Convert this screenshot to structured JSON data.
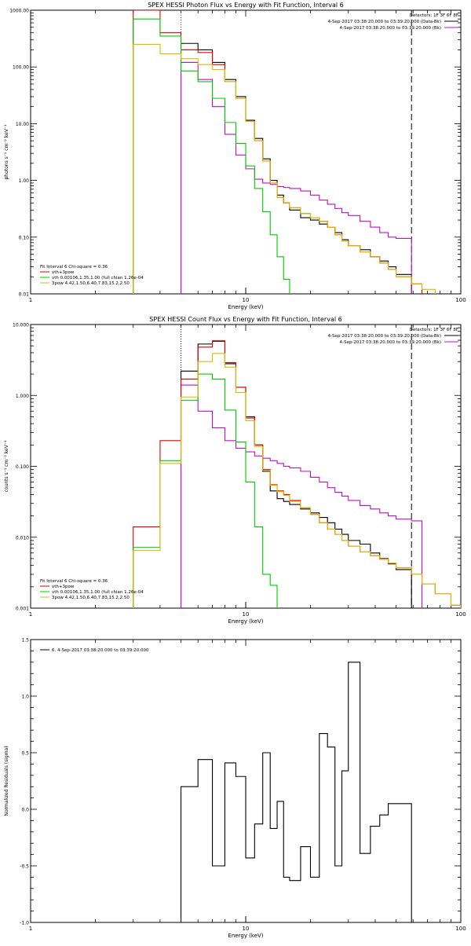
{
  "chart_data": [
    {
      "type": "line",
      "title": "SPEX HESSI Photon Flux vs Energy with Fit Function, Interval 6",
      "xlabel": "Energy (keV)",
      "ylabel": "photons s⁻¹ cm⁻² keV⁻¹",
      "x_scale": "log",
      "y_scale": "log",
      "xlim": [
        1,
        100
      ],
      "ylim": [
        0.01,
        1000
      ],
      "x_ticks": [
        1,
        10,
        100
      ],
      "x_tick_labels": [
        "1",
        "10",
        "100"
      ],
      "y_ticks": [
        0.01,
        0.1,
        1,
        10,
        100,
        1000
      ],
      "y_tick_labels": [
        "0.01",
        "0.10",
        "1.00",
        "10.00",
        "100.00",
        "1000.00"
      ],
      "header_lines": [
        "Detectors: 1F 3F 6F 8F",
        "4-Sep-2017 03:38:20.000 to 03:39:20.000 (Data-Bk)",
        "4-Sep-2017 03:38:20.000 to 03:39:20.000 (Bk)"
      ],
      "header_colors": [
        "#000000",
        "#c010c0"
      ],
      "legend_lines": [
        "Fit Interval 6   Chi-square = 0.36",
        "vth+3pow",
        "vth 0.00106,1.35,1.00  (full chian 1.26e-04",
        "3pow 4.42,1.50,6.40,7.83,15.2,2.50"
      ],
      "legend_colors": [
        "#000000",
        "#e00000",
        "#00cc00",
        "#ddbb00"
      ],
      "vlines": [
        {
          "x": 5.0,
          "style": "dotted",
          "color": "#c010c0"
        },
        {
          "x": 59,
          "style": "dashed",
          "color": "#000000"
        }
      ],
      "edges": [
        3.0,
        4.0,
        5.0,
        5.5,
        6.0,
        6.5,
        7.0,
        7.5,
        8.0,
        8.5,
        9.0,
        9.5,
        10.0,
        11.0,
        12.0,
        13.0,
        14.0,
        15.0,
        16.0,
        18.0,
        20.0,
        22.0,
        24.0,
        26.0,
        28.0,
        30.0,
        34.0,
        38.0,
        42.0,
        46.0,
        50.0,
        59.0,
        66.0,
        76.0
      ],
      "series": [
        {
          "name": "Data-Bk",
          "color": "#000000",
          "values": [
            null,
            null,
            260,
            260,
            200,
            200,
            120,
            120,
            60,
            60,
            30,
            30,
            11.5,
            5.5,
            2.4,
            1.0,
            0.55,
            0.4,
            0.3,
            0.22,
            0.2,
            0.17,
            0.15,
            0.12,
            0.09,
            0.07,
            0.06,
            0.045,
            0.038,
            0.03,
            0.022,
            null,
            null
          ]
        },
        {
          "name": "Bk",
          "color": "#c010c0",
          "values": [
            null,
            null,
            120,
            120,
            60,
            60,
            20,
            20,
            6.5,
            6.5,
            2.8,
            2.8,
            1.6,
            1.05,
            0.9,
            0.85,
            0.78,
            0.75,
            0.72,
            0.65,
            0.55,
            0.45,
            0.38,
            0.32,
            0.27,
            0.24,
            0.19,
            0.15,
            0.12,
            0.1,
            0.095,
            null,
            null
          ]
        },
        {
          "name": "vth+3pow",
          "color": "#e00000",
          "values": [
            1000,
            400,
            200,
            200,
            180,
            180,
            110,
            110,
            55,
            55,
            28,
            28,
            11.0,
            5.0,
            2.2,
            0.9,
            0.5,
            0.4,
            0.33,
            0.26,
            0.22,
            0.19,
            0.15,
            0.11,
            0.085,
            0.07,
            0.055,
            0.045,
            0.035,
            0.027,
            0.02,
            0.015,
            null
          ]
        },
        {
          "name": "vth",
          "color": "#00cc00",
          "values": [
            700,
            350,
            85,
            85,
            55,
            55,
            28,
            28,
            10.5,
            10.5,
            4.5,
            4.5,
            1.8,
            0.72,
            0.28,
            0.11,
            0.045,
            0.018,
            null,
            null,
            null,
            null,
            null,
            null,
            null,
            null,
            null,
            null,
            null,
            null,
            null,
            null,
            null
          ]
        },
        {
          "name": "3pow",
          "color": "#ddbb00",
          "values": [
            250,
            170,
            140,
            140,
            110,
            110,
            90,
            90,
            55,
            55,
            28,
            28,
            11.0,
            5.0,
            2.2,
            0.9,
            0.5,
            0.4,
            0.33,
            0.26,
            0.22,
            0.19,
            0.15,
            0.11,
            0.085,
            0.07,
            0.055,
            0.045,
            0.035,
            0.027,
            0.02,
            0.015,
            0.012
          ]
        }
      ]
    },
    {
      "type": "line",
      "title": "SPEX HESSI Count Flux vs Energy with Fit Function, Interval 6",
      "xlabel": "Energy (keV)",
      "ylabel": "counts s⁻¹ cm⁻² keV⁻¹",
      "x_scale": "log",
      "y_scale": "log",
      "xlim": [
        1,
        100
      ],
      "ylim": [
        0.001,
        10
      ],
      "x_ticks": [
        1,
        10,
        100
      ],
      "x_tick_labels": [
        "1",
        "10",
        "100"
      ],
      "y_ticks": [
        0.001,
        0.01,
        0.1,
        1,
        10
      ],
      "y_tick_labels": [
        "0.001",
        "0.010",
        "0.100",
        "1.000",
        "10.000"
      ],
      "header_lines": [
        "Detectors: 1F 3F 6F 8F",
        "4-Sep-2017 03:38:20.000 to 03:39:20.000 (Data-Bk)",
        "4-Sep-2017 03:38:20.000 to 03:39:20.000 (Bk)"
      ],
      "header_colors": [
        "#000000",
        "#c010c0"
      ],
      "legend_lines": [
        "Fit Interval 6   Chi-square = 0.36",
        "vth+3pow",
        "vth 0.00106,1.35,1.00  (full chian 1.26e-04",
        "3pow 4.42,1.50,6.40,7.83,15.2,2.50"
      ],
      "legend_colors": [
        "#000000",
        "#e00000",
        "#00cc00",
        "#ddbb00"
      ],
      "vlines": [
        {
          "x": 5.0,
          "style": "dotted",
          "color": "#000000"
        },
        {
          "x": 59,
          "style": "dashed",
          "color": "#000000"
        }
      ],
      "edges": [
        3.0,
        4.0,
        5.0,
        5.5,
        6.0,
        6.5,
        7.0,
        7.5,
        8.0,
        8.5,
        9.0,
        9.5,
        10.0,
        11.0,
        12.0,
        13.0,
        14.0,
        15.0,
        16.0,
        18.0,
        20.0,
        22.0,
        24.0,
        26.0,
        28.0,
        30.0,
        34.0,
        38.0,
        42.0,
        46.0,
        50.0,
        59.0,
        66.0,
        76.0,
        90.0,
        100.0
      ],
      "series": [
        {
          "name": "Data-Bk",
          "color": "#000000",
          "values": [
            null,
            null,
            2.2,
            2.2,
            5.3,
            5.3,
            5.8,
            5.8,
            2.8,
            2.8,
            1.3,
            1.3,
            0.5,
            0.2,
            0.085,
            0.045,
            0.035,
            0.032,
            0.029,
            0.025,
            0.022,
            0.019,
            0.016,
            0.013,
            0.011,
            0.009,
            0.008,
            0.006,
            0.005,
            0.0042,
            0.0035,
            null,
            null,
            null,
            null
          ]
        },
        {
          "name": "Bk",
          "color": "#c010c0",
          "values": [
            null,
            null,
            1.4,
            1.4,
            0.6,
            0.6,
            0.35,
            0.35,
            0.23,
            0.23,
            0.18,
            0.18,
            0.16,
            0.14,
            0.13,
            0.12,
            0.11,
            0.1,
            0.095,
            0.085,
            0.07,
            0.06,
            0.05,
            0.043,
            0.038,
            0.033,
            0.028,
            0.025,
            0.022,
            0.02,
            0.018,
            0.017,
            null,
            null,
            null
          ]
        },
        {
          "name": "vth+3pow",
          "color": "#e00000",
          "values": [
            0.014,
            0.23,
            1.7,
            1.7,
            4.8,
            4.8,
            5.9,
            5.9,
            2.9,
            2.9,
            1.3,
            1.3,
            0.48,
            0.2,
            0.09,
            0.055,
            0.045,
            0.04,
            0.033,
            0.026,
            0.021,
            0.016,
            0.013,
            0.011,
            0.009,
            0.0075,
            0.0062,
            0.0055,
            0.0049,
            0.0043,
            0.0037,
            0.003,
            0.0022,
            0.0016,
            0.0011
          ]
        },
        {
          "name": "vth",
          "color": "#00cc00",
          "values": [
            0.0072,
            0.12,
            0.85,
            0.85,
            2.0,
            2.0,
            1.7,
            1.7,
            0.62,
            0.62,
            0.22,
            0.22,
            0.06,
            0.014,
            0.003,
            0.0021,
            null,
            null,
            null,
            null,
            null,
            null,
            null,
            null,
            null,
            null,
            null,
            null,
            null,
            null,
            null,
            null,
            null,
            null,
            null
          ]
        },
        {
          "name": "3pow",
          "color": "#ddbb00",
          "values": [
            0.0065,
            0.11,
            0.95,
            0.95,
            3.0,
            3.0,
            3.9,
            3.9,
            2.5,
            2.5,
            1.1,
            1.1,
            0.44,
            0.19,
            0.088,
            0.054,
            0.044,
            0.039,
            0.032,
            0.026,
            0.021,
            0.016,
            0.013,
            0.011,
            0.009,
            0.0075,
            0.0062,
            0.0055,
            0.0049,
            0.0043,
            0.0037,
            0.003,
            0.0022,
            0.0016,
            0.0011
          ]
        }
      ]
    },
    {
      "type": "line",
      "title": "",
      "xlabel": "Energy (keV)",
      "ylabel": "Normalized Residuals (sigma)",
      "x_scale": "log",
      "y_scale": "linear",
      "xlim": [
        1,
        100
      ],
      "ylim": [
        -1.0,
        1.5
      ],
      "x_ticks": [
        1,
        10,
        100
      ],
      "x_tick_labels": [
        "1",
        "10",
        "100"
      ],
      "y_ticks": [
        -1.0,
        -0.5,
        0.0,
        0.5,
        1.0,
        1.5
      ],
      "y_tick_labels": [
        "-1.0",
        "-0.5",
        "0.0",
        "0.5",
        "1.0",
        "1.5"
      ],
      "legend_lines": [
        "6.  4-Sep-2017 03:38:20.000 to 03:39:20.000"
      ],
      "legend_colors": [
        "#000000"
      ],
      "vlines": [],
      "edges": [
        5.0,
        5.5,
        6.0,
        6.5,
        7.0,
        7.5,
        8.0,
        8.5,
        9.0,
        9.5,
        10.0,
        11.0,
        12.0,
        13.0,
        14.0,
        15.0,
        16.0,
        18.0,
        20.0,
        22.0,
        24.0,
        26.0,
        28.0,
        30.0,
        34.0,
        38.0,
        42.0,
        46.0,
        50.0,
        59.0
      ],
      "series": [
        {
          "name": "6.",
          "color": "#000000",
          "values": [
            0.2,
            0.2,
            0.44,
            0.44,
            -0.5,
            -0.5,
            0.41,
            0.41,
            0.29,
            0.29,
            -0.43,
            -0.13,
            0.5,
            -0.17,
            0.07,
            -0.6,
            -0.63,
            -0.33,
            -0.6,
            0.67,
            0.55,
            -0.5,
            0.34,
            1.3,
            -0.39,
            -0.15,
            -0.05,
            0.05,
            0.05
          ]
        }
      ],
      "step_to_floor": true
    }
  ]
}
